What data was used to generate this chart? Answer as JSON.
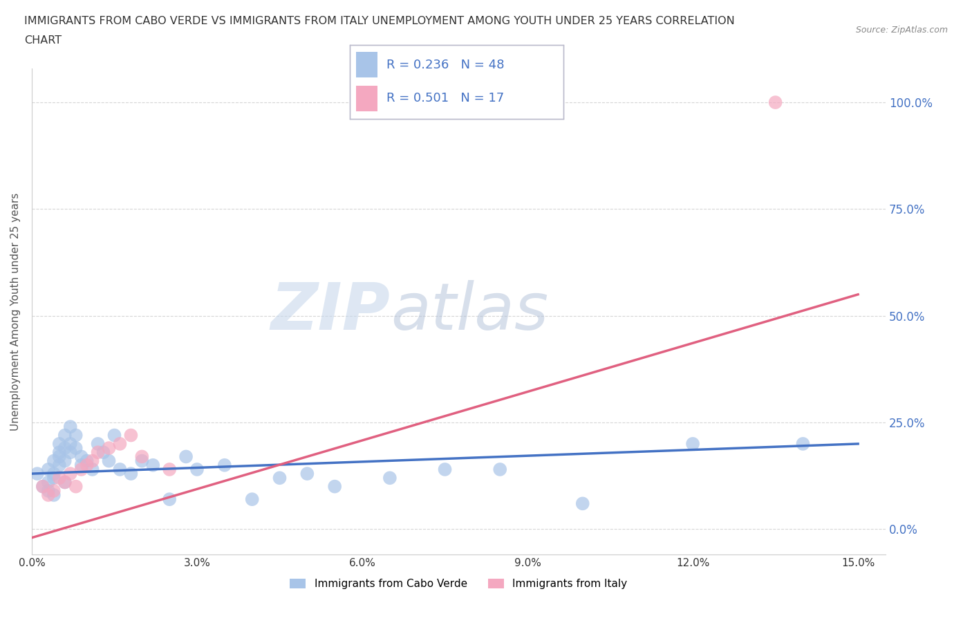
{
  "title_line1": "IMMIGRANTS FROM CABO VERDE VS IMMIGRANTS FROM ITALY UNEMPLOYMENT AMONG YOUTH UNDER 25 YEARS CORRELATION",
  "title_line2": "CHART",
  "source": "Source: ZipAtlas.com",
  "ylabel": "Unemployment Among Youth under 25 years",
  "xlabel_ticks": [
    "0.0%",
    "3.0%",
    "6.0%",
    "9.0%",
    "12.0%",
    "15.0%"
  ],
  "xlabel_vals": [
    0.0,
    0.03,
    0.06,
    0.09,
    0.12,
    0.15
  ],
  "ytick_labels": [
    "0.0%",
    "25.0%",
    "50.0%",
    "75.0%",
    "100.0%"
  ],
  "ytick_vals": [
    0.0,
    0.25,
    0.5,
    0.75,
    1.0
  ],
  "xmin": 0.0,
  "xmax": 0.155,
  "ymin": -0.06,
  "ymax": 1.08,
  "cabo_verde_R": 0.236,
  "cabo_verde_N": 48,
  "italy_R": 0.501,
  "italy_N": 17,
  "cabo_verde_color": "#a8c4e8",
  "italy_color": "#f4a8c0",
  "cabo_verde_line_color": "#4472c4",
  "italy_line_color": "#e06080",
  "legend_text_color": "#4472c4",
  "background_color": "#ffffff",
  "grid_color": "#cccccc",
  "watermark_zip": "ZIP",
  "watermark_atlas": "atlas",
  "cabo_verde_scatter_x": [
    0.001,
    0.002,
    0.003,
    0.003,
    0.003,
    0.004,
    0.004,
    0.004,
    0.004,
    0.005,
    0.005,
    0.005,
    0.005,
    0.006,
    0.006,
    0.006,
    0.006,
    0.007,
    0.007,
    0.007,
    0.008,
    0.008,
    0.009,
    0.009,
    0.01,
    0.011,
    0.012,
    0.013,
    0.014,
    0.015,
    0.016,
    0.018,
    0.02,
    0.022,
    0.025,
    0.028,
    0.03,
    0.035,
    0.04,
    0.045,
    0.05,
    0.055,
    0.065,
    0.075,
    0.085,
    0.1,
    0.12,
    0.14
  ],
  "cabo_verde_scatter_y": [
    0.13,
    0.1,
    0.14,
    0.11,
    0.09,
    0.16,
    0.13,
    0.12,
    0.08,
    0.18,
    0.15,
    0.2,
    0.17,
    0.22,
    0.19,
    0.16,
    0.11,
    0.24,
    0.2,
    0.18,
    0.22,
    0.19,
    0.17,
    0.15,
    0.16,
    0.14,
    0.2,
    0.18,
    0.16,
    0.22,
    0.14,
    0.13,
    0.16,
    0.15,
    0.07,
    0.17,
    0.14,
    0.15,
    0.07,
    0.12,
    0.13,
    0.1,
    0.12,
    0.14,
    0.14,
    0.06,
    0.2,
    0.2
  ],
  "italy_scatter_x": [
    0.002,
    0.003,
    0.004,
    0.005,
    0.006,
    0.007,
    0.008,
    0.009,
    0.01,
    0.011,
    0.012,
    0.014,
    0.016,
    0.018,
    0.02,
    0.025,
    0.135
  ],
  "italy_scatter_y": [
    0.1,
    0.08,
    0.09,
    0.12,
    0.11,
    0.13,
    0.1,
    0.14,
    0.15,
    0.16,
    0.18,
    0.19,
    0.2,
    0.22,
    0.17,
    0.14,
    1.0
  ],
  "italy_line_x0": 0.0,
  "italy_line_y0": -0.02,
  "italy_line_x1": 0.15,
  "italy_line_y1": 0.55,
  "cabo_line_x0": 0.0,
  "cabo_line_y0": 0.13,
  "cabo_line_x1": 0.15,
  "cabo_line_y1": 0.2
}
